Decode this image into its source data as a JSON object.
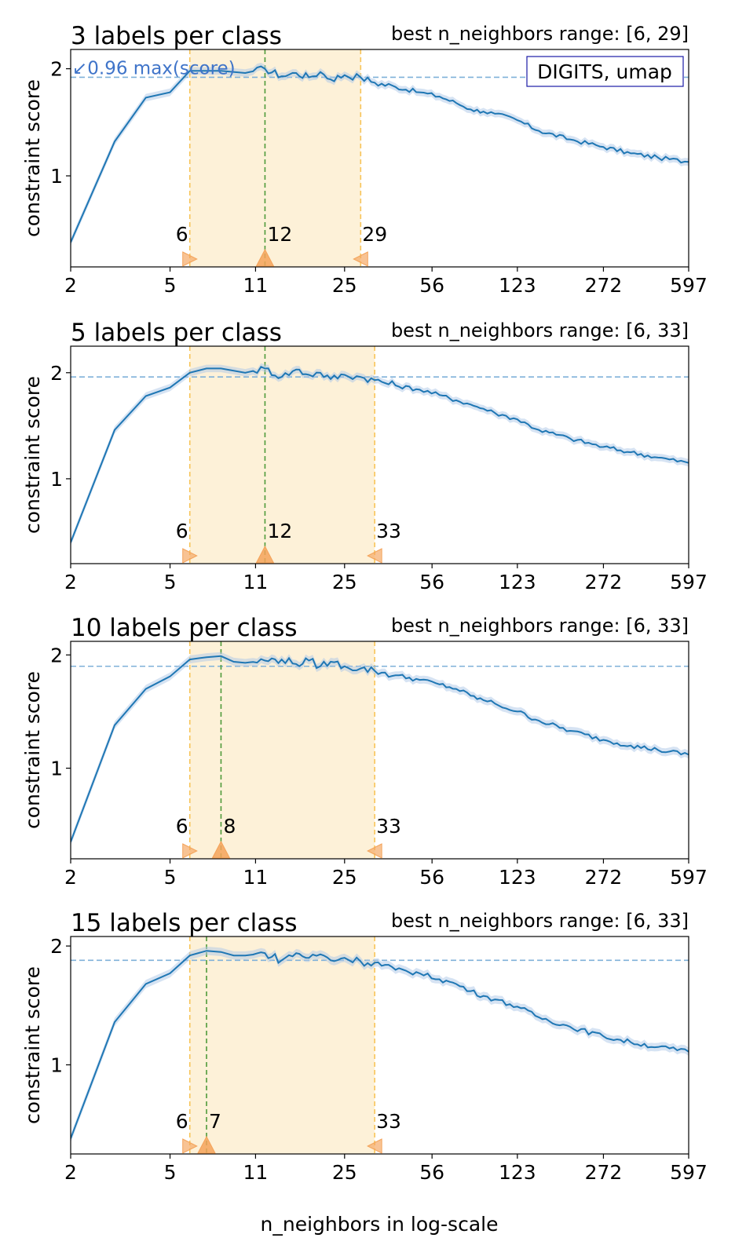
{
  "figure": {
    "xlabel": "n_neighbors in log-scale",
    "ylabel": "constraint score",
    "x_ticks": [
      "2",
      "5",
      "11",
      "25",
      "56",
      "123",
      "272",
      "597"
    ],
    "y_ticks": [
      "1",
      "2"
    ],
    "annotation_label": "↙0.96 max(score)",
    "box_label": "DIGITS, umap",
    "colors": {
      "line": "#1f77b4",
      "band": "#aec7e8",
      "threshold": "#7fb1d9",
      "range_fill": "#fdf1d8",
      "range_edge": "#f8c458",
      "best_line": "#4e9a3a",
      "marker": "#f4a35a",
      "annotation": "#3f74c9",
      "box_edge": "#1a1aa6"
    }
  },
  "chart_data": [
    {
      "type": "line",
      "title": "3 labels per class",
      "range_label": "best n_neighbors range: [6, 29]",
      "xscale": "log",
      "x": [
        2,
        3,
        4,
        5,
        6,
        8,
        10,
        12,
        14,
        16,
        18,
        20,
        22,
        25,
        29,
        33,
        40,
        50,
        60,
        70,
        80,
        90,
        100,
        123,
        150,
        200,
        272,
        350,
        450,
        597
      ],
      "y": [
        0.38,
        1.32,
        1.73,
        1.78,
        1.98,
        1.98,
        1.96,
        2.0,
        1.93,
        1.96,
        1.92,
        1.97,
        1.9,
        1.94,
        1.92,
        1.87,
        1.83,
        1.78,
        1.74,
        1.68,
        1.62,
        1.6,
        1.58,
        1.52,
        1.42,
        1.34,
        1.27,
        1.21,
        1.17,
        1.13
      ],
      "threshold": 1.92,
      "ylim": [
        0.15,
        2.18
      ],
      "xlim": [
        2,
        597
      ],
      "range": [
        6,
        29
      ],
      "best": 12,
      "marker_labels": [
        "6",
        "12",
        "29"
      ]
    },
    {
      "type": "line",
      "title": "5 labels per class",
      "range_label": "best n_neighbors range: [6, 33]",
      "xscale": "log",
      "x": [
        2,
        3,
        4,
        5,
        6,
        7,
        8,
        10,
        12,
        14,
        16,
        18,
        20,
        22,
        25,
        29,
        33,
        40,
        50,
        60,
        70,
        80,
        90,
        100,
        123,
        150,
        200,
        272,
        350,
        450,
        597
      ],
      "y": [
        0.4,
        1.46,
        1.78,
        1.86,
        2.0,
        2.04,
        2.04,
        2.0,
        2.04,
        1.96,
        2.03,
        1.98,
        2.0,
        1.94,
        1.98,
        1.96,
        1.93,
        1.88,
        1.84,
        1.79,
        1.74,
        1.7,
        1.66,
        1.62,
        1.56,
        1.46,
        1.38,
        1.3,
        1.25,
        1.2,
        1.15
      ],
      "threshold": 1.96,
      "ylim": [
        0.2,
        2.25
      ],
      "xlim": [
        2,
        597
      ],
      "range": [
        6,
        33
      ],
      "best": 12,
      "marker_labels": [
        "6",
        "12",
        "33"
      ]
    },
    {
      "type": "line",
      "title": "10 labels per class",
      "range_label": "best n_neighbors range: [6, 33]",
      "xscale": "log",
      "x": [
        2,
        3,
        4,
        5,
        6,
        7,
        8,
        9,
        10,
        12,
        14,
        16,
        18,
        20,
        22,
        25,
        29,
        33,
        40,
        50,
        60,
        70,
        80,
        90,
        100,
        123,
        150,
        200,
        272,
        350,
        450,
        597
      ],
      "y": [
        0.35,
        1.38,
        1.7,
        1.81,
        1.96,
        1.98,
        1.99,
        1.94,
        1.93,
        1.95,
        1.96,
        1.92,
        1.95,
        1.9,
        1.94,
        1.9,
        1.88,
        1.86,
        1.82,
        1.78,
        1.74,
        1.7,
        1.64,
        1.6,
        1.57,
        1.5,
        1.42,
        1.33,
        1.25,
        1.2,
        1.16,
        1.12
      ],
      "threshold": 1.9,
      "ylim": [
        0.2,
        2.12
      ],
      "xlim": [
        2,
        597
      ],
      "range": [
        6,
        33
      ],
      "best": 8,
      "marker_labels": [
        "6",
        "8",
        "33"
      ]
    },
    {
      "type": "line",
      "title": "15 labels per class",
      "range_label": "best n_neighbors range: [6, 33]",
      "xscale": "log",
      "x": [
        2,
        3,
        4,
        5,
        6,
        7,
        8,
        9,
        10,
        12,
        14,
        16,
        18,
        20,
        22,
        25,
        29,
        33,
        40,
        50,
        60,
        70,
        80,
        90,
        100,
        123,
        150,
        200,
        272,
        350,
        450,
        597
      ],
      "y": [
        0.38,
        1.36,
        1.68,
        1.77,
        1.92,
        1.96,
        1.95,
        1.92,
        1.92,
        1.94,
        1.88,
        1.94,
        1.9,
        1.93,
        1.88,
        1.9,
        1.87,
        1.86,
        1.8,
        1.77,
        1.72,
        1.68,
        1.62,
        1.58,
        1.55,
        1.49,
        1.4,
        1.32,
        1.24,
        1.19,
        1.15,
        1.11
      ],
      "threshold": 1.88,
      "ylim": [
        0.25,
        2.08
      ],
      "xlim": [
        2,
        597
      ],
      "range": [
        6,
        33
      ],
      "best": 7,
      "marker_labels": [
        "6",
        "7",
        "33"
      ]
    }
  ]
}
